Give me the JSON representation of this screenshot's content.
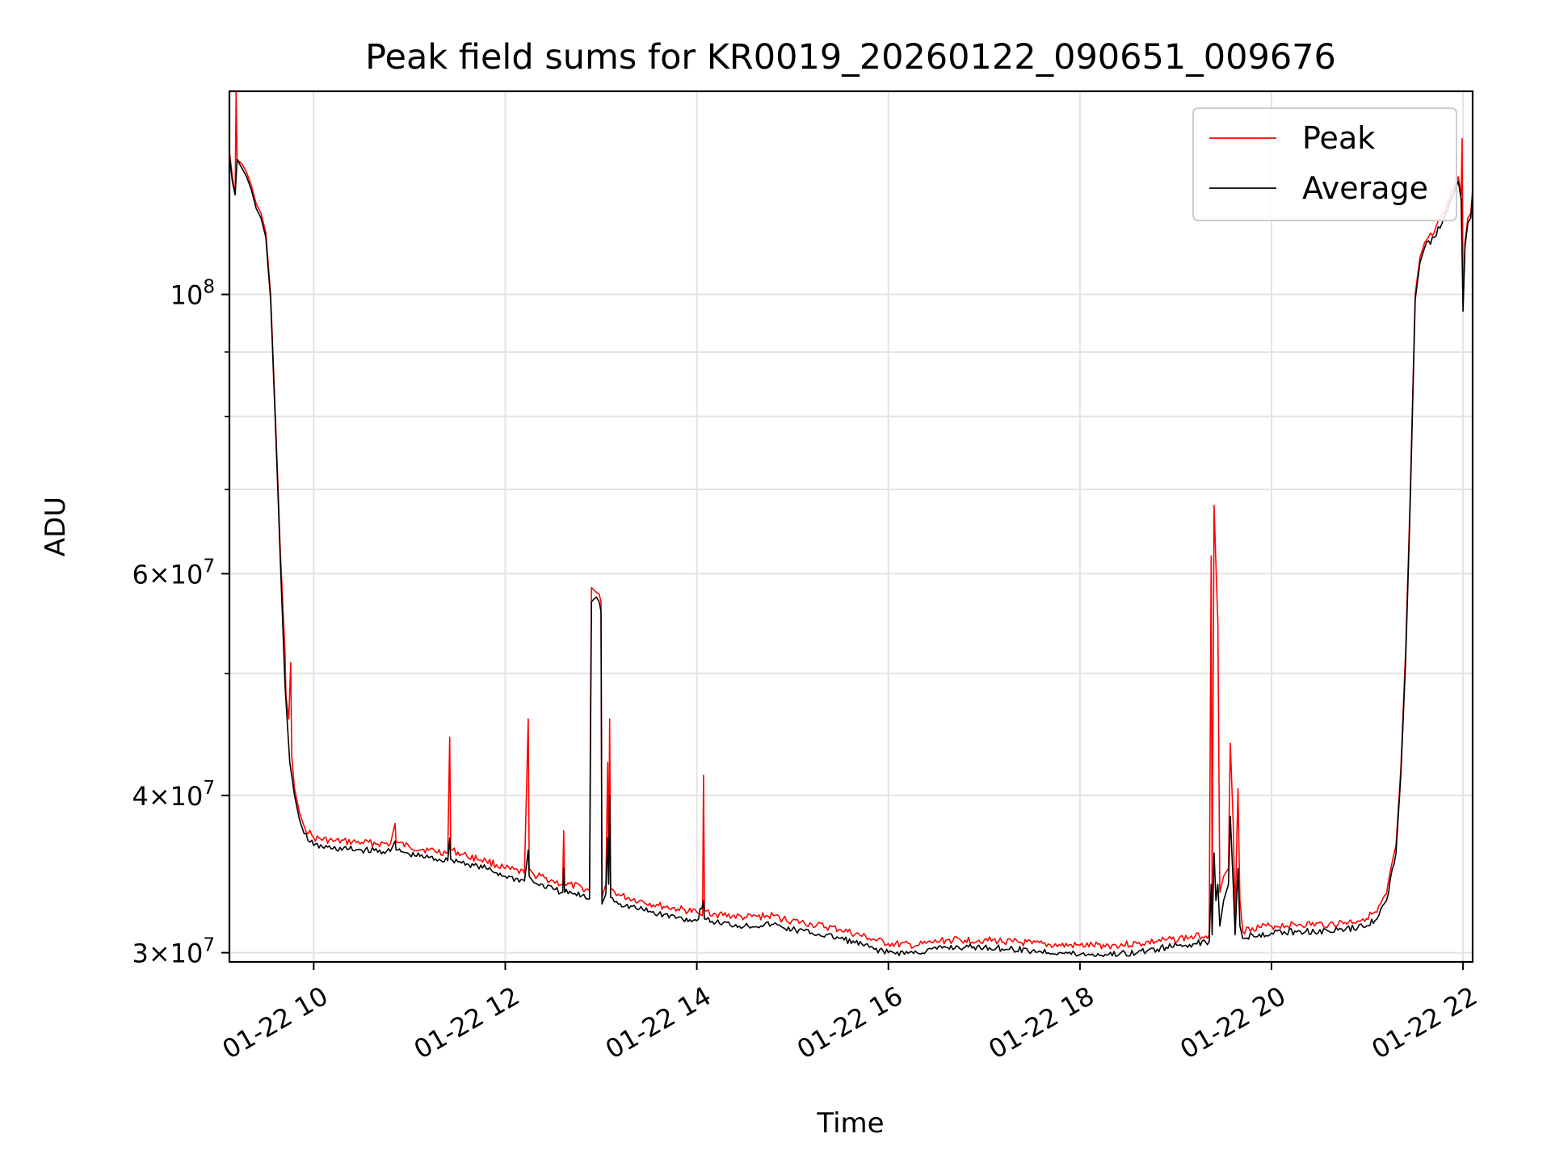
{
  "chart_data": {
    "type": "line",
    "title": "Peak field sums for KR0019_20260122_090651_009676",
    "xlabel": "Time",
    "ylabel": "ADU",
    "x_axis": {
      "unit": "hours",
      "range": [
        9.12,
        22.1
      ],
      "ticks": [
        {
          "value": 10,
          "label": "01-22 10"
        },
        {
          "value": 12,
          "label": "01-22 12"
        },
        {
          "value": 14,
          "label": "01-22 14"
        },
        {
          "value": 16,
          "label": "01-22 16"
        },
        {
          "value": 18,
          "label": "01-22 18"
        },
        {
          "value": 20,
          "label": "01-22 20"
        },
        {
          "value": 22,
          "label": "01-22 22"
        }
      ]
    },
    "y_axis": {
      "scale": "log",
      "range": [
        29500000,
        145000000
      ],
      "major_ticks": [
        {
          "value": 30000000,
          "mant": "3",
          "exp": "7"
        },
        {
          "value": 40000000,
          "mant": "4",
          "exp": "7"
        },
        {
          "value": 60000000,
          "mant": "6",
          "exp": "7"
        },
        {
          "value": 100000000,
          "mant": "",
          "exp": "8"
        }
      ],
      "minor_ticks": [
        50000000,
        70000000,
        80000000,
        90000000
      ]
    },
    "grid": true,
    "legend": {
      "position": "top-right"
    },
    "series": [
      {
        "name": "Peak",
        "color": "#ff0000",
        "points": [
          [
            9.12,
            130000000
          ],
          [
            9.15,
            124000000
          ],
          [
            9.18,
            120000000
          ],
          [
            9.19,
            145000000
          ],
          [
            9.2,
            128000000
          ],
          [
            9.25,
            127000000
          ],
          [
            9.3,
            125000000
          ],
          [
            9.35,
            122000000
          ],
          [
            9.4,
            118000000
          ],
          [
            9.45,
            116000000
          ],
          [
            9.5,
            112000000
          ],
          [
            9.55,
            100000000
          ],
          [
            9.6,
            80000000
          ],
          [
            9.65,
            63000000
          ],
          [
            9.7,
            52000000
          ],
          [
            9.71,
            48000000
          ],
          [
            9.74,
            46000000
          ],
          [
            9.76,
            51000000
          ],
          [
            9.77,
            43000000
          ],
          [
            9.8,
            40500000
          ],
          [
            9.85,
            38800000
          ],
          [
            9.9,
            37800000
          ],
          [
            10.0,
            37000000
          ],
          [
            10.2,
            36800000
          ],
          [
            10.5,
            36700000
          ],
          [
            10.8,
            36600000
          ],
          [
            10.85,
            38000000
          ],
          [
            10.86,
            36700000
          ],
          [
            11.0,
            36400000
          ],
          [
            11.2,
            36200000
          ],
          [
            11.4,
            36000000
          ],
          [
            11.42,
            44500000
          ],
          [
            11.43,
            36200000
          ],
          [
            11.6,
            35800000
          ],
          [
            11.8,
            35500000
          ],
          [
            12.0,
            35000000
          ],
          [
            12.2,
            34700000
          ],
          [
            12.24,
            46000000
          ],
          [
            12.25,
            35000000
          ],
          [
            12.3,
            34600000
          ],
          [
            12.5,
            34200000
          ],
          [
            12.6,
            34000000
          ],
          [
            12.61,
            37500000
          ],
          [
            12.62,
            34000000
          ],
          [
            12.8,
            33800000
          ],
          [
            12.88,
            33600000
          ],
          [
            12.89,
            47000000
          ],
          [
            12.9,
            58500000
          ],
          [
            12.95,
            58000000
          ],
          [
            12.98,
            57800000
          ],
          [
            13.0,
            57000000
          ],
          [
            13.01,
            33200000
          ],
          [
            13.05,
            34000000
          ],
          [
            13.07,
            42500000
          ],
          [
            13.08,
            34500000
          ],
          [
            13.09,
            46000000
          ],
          [
            13.1,
            33700000
          ],
          [
            13.2,
            33300000
          ],
          [
            13.4,
            33000000
          ],
          [
            13.6,
            32700000
          ],
          [
            13.8,
            32500000
          ],
          [
            14.0,
            32300000
          ],
          [
            14.06,
            32100000
          ],
          [
            14.07,
            41500000
          ],
          [
            14.08,
            32400000
          ],
          [
            14.2,
            32200000
          ],
          [
            14.5,
            32000000
          ],
          [
            14.8,
            32100000
          ],
          [
            14.9,
            31900000
          ],
          [
            15.2,
            31600000
          ],
          [
            15.5,
            31300000
          ],
          [
            15.8,
            30800000
          ],
          [
            16.0,
            30500000
          ],
          [
            16.3,
            30400000
          ],
          [
            16.6,
            30700000
          ],
          [
            16.8,
            30700000
          ],
          [
            17.0,
            30700000
          ],
          [
            17.3,
            30600000
          ],
          [
            17.5,
            30500000
          ],
          [
            17.8,
            30400000
          ],
          [
            18.0,
            30400000
          ],
          [
            18.3,
            30400000
          ],
          [
            18.6,
            30500000
          ],
          [
            18.9,
            30700000
          ],
          [
            19.2,
            30900000
          ],
          [
            19.35,
            31000000
          ],
          [
            19.37,
            62000000
          ],
          [
            19.38,
            33000000
          ],
          [
            19.4,
            68000000
          ],
          [
            19.42,
            61000000
          ],
          [
            19.44,
            55000000
          ],
          [
            19.46,
            33500000
          ],
          [
            19.5,
            34500000
          ],
          [
            19.55,
            35000000
          ],
          [
            19.57,
            44000000
          ],
          [
            19.6,
            38000000
          ],
          [
            19.62,
            32000000
          ],
          [
            19.65,
            40500000
          ],
          [
            19.67,
            33000000
          ],
          [
            19.7,
            31200000
          ],
          [
            19.8,
            31400000
          ],
          [
            20.0,
            31500000
          ],
          [
            20.3,
            31600000
          ],
          [
            20.6,
            31600000
          ],
          [
            20.9,
            31800000
          ],
          [
            21.1,
            32300000
          ],
          [
            21.2,
            33400000
          ],
          [
            21.3,
            36500000
          ],
          [
            21.35,
            42000000
          ],
          [
            21.4,
            52000000
          ],
          [
            21.45,
            70000000
          ],
          [
            21.5,
            100000000
          ],
          [
            21.55,
            107000000
          ],
          [
            21.6,
            110000000
          ],
          [
            21.7,
            112000000
          ],
          [
            21.8,
            116000000
          ],
          [
            21.9,
            121000000
          ],
          [
            21.95,
            124000000
          ],
          [
            21.98,
            120000000
          ],
          [
            21.99,
            133000000
          ],
          [
            22.0,
            98000000
          ],
          [
            22.02,
            110000000
          ],
          [
            22.05,
            115000000
          ],
          [
            22.08,
            116000000
          ],
          [
            22.1,
            121000000
          ]
        ]
      },
      {
        "name": "Average",
        "color": "#000000",
        "points": [
          [
            9.12,
            129000000
          ],
          [
            9.15,
            123000000
          ],
          [
            9.18,
            120000000
          ],
          [
            9.2,
            128000000
          ],
          [
            9.25,
            126000000
          ],
          [
            9.3,
            124000000
          ],
          [
            9.35,
            121000000
          ],
          [
            9.4,
            117000000
          ],
          [
            9.45,
            115000000
          ],
          [
            9.5,
            111000000
          ],
          [
            9.55,
            99000000
          ],
          [
            9.6,
            79000000
          ],
          [
            9.65,
            62000000
          ],
          [
            9.7,
            49000000
          ],
          [
            9.75,
            42500000
          ],
          [
            9.8,
            40000000
          ],
          [
            9.85,
            38300000
          ],
          [
            9.9,
            37300000
          ],
          [
            10.0,
            36500000
          ],
          [
            10.2,
            36300000
          ],
          [
            10.5,
            36200000
          ],
          [
            10.8,
            36100000
          ],
          [
            10.85,
            36800000
          ],
          [
            10.86,
            36200000
          ],
          [
            11.0,
            35900000
          ],
          [
            11.2,
            35700000
          ],
          [
            11.4,
            35500000
          ],
          [
            11.42,
            37000000
          ],
          [
            11.43,
            35600000
          ],
          [
            11.6,
            35300000
          ],
          [
            11.8,
            35000000
          ],
          [
            12.0,
            34500000
          ],
          [
            12.2,
            34200000
          ],
          [
            12.24,
            36200000
          ],
          [
            12.25,
            34500000
          ],
          [
            12.3,
            34100000
          ],
          [
            12.5,
            33700000
          ],
          [
            12.6,
            33500000
          ],
          [
            12.61,
            35000000
          ],
          [
            12.62,
            33500000
          ],
          [
            12.8,
            33300000
          ],
          [
            12.88,
            33100000
          ],
          [
            12.89,
            44000000
          ],
          [
            12.9,
            57000000
          ],
          [
            12.95,
            57500000
          ],
          [
            12.98,
            57000000
          ],
          [
            13.0,
            56000000
          ],
          [
            13.01,
            32800000
          ],
          [
            13.05,
            33400000
          ],
          [
            13.07,
            37000000
          ],
          [
            13.08,
            34000000
          ],
          [
            13.09,
            40000000
          ],
          [
            13.1,
            33200000
          ],
          [
            13.2,
            32800000
          ],
          [
            13.4,
            32500000
          ],
          [
            13.6,
            32200000
          ],
          [
            13.8,
            32000000
          ],
          [
            14.0,
            31800000
          ],
          [
            14.07,
            33000000
          ],
          [
            14.08,
            31900000
          ],
          [
            14.2,
            31700000
          ],
          [
            14.5,
            31500000
          ],
          [
            14.8,
            31600000
          ],
          [
            14.9,
            31400000
          ],
          [
            15.2,
            31100000
          ],
          [
            15.5,
            30800000
          ],
          [
            15.8,
            30300000
          ],
          [
            16.0,
            30000000
          ],
          [
            16.3,
            30000000
          ],
          [
            16.6,
            30300000
          ],
          [
            16.8,
            30300000
          ],
          [
            17.0,
            30300000
          ],
          [
            17.3,
            30200000
          ],
          [
            17.5,
            30100000
          ],
          [
            17.8,
            30000000
          ],
          [
            18.0,
            29900000
          ],
          [
            18.3,
            29900000
          ],
          [
            18.6,
            30000000
          ],
          [
            18.9,
            30300000
          ],
          [
            19.2,
            30500000
          ],
          [
            19.35,
            30600000
          ],
          [
            19.37,
            34000000
          ],
          [
            19.38,
            31000000
          ],
          [
            19.4,
            36000000
          ],
          [
            19.42,
            33000000
          ],
          [
            19.44,
            34000000
          ],
          [
            19.46,
            31500000
          ],
          [
            19.5,
            33000000
          ],
          [
            19.55,
            34000000
          ],
          [
            19.57,
            38500000
          ],
          [
            19.6,
            34000000
          ],
          [
            19.62,
            31000000
          ],
          [
            19.65,
            35000000
          ],
          [
            19.67,
            31500000
          ],
          [
            19.7,
            30800000
          ],
          [
            19.8,
            31000000
          ],
          [
            20.0,
            31100000
          ],
          [
            20.3,
            31200000
          ],
          [
            20.6,
            31200000
          ],
          [
            20.9,
            31400000
          ],
          [
            21.1,
            31900000
          ],
          [
            21.2,
            33000000
          ],
          [
            21.3,
            36000000
          ],
          [
            21.35,
            41500000
          ],
          [
            21.4,
            51000000
          ],
          [
            21.45,
            69000000
          ],
          [
            21.5,
            99000000
          ],
          [
            21.55,
            106000000
          ],
          [
            21.6,
            109000000
          ],
          [
            21.7,
            111000000
          ],
          [
            21.8,
            115000000
          ],
          [
            21.9,
            120000000
          ],
          [
            21.95,
            123000000
          ],
          [
            21.98,
            119000000
          ],
          [
            22.0,
            97000000
          ],
          [
            22.02,
            109000000
          ],
          [
            22.05,
            114000000
          ],
          [
            22.08,
            115000000
          ],
          [
            22.1,
            120000000
          ]
        ]
      }
    ]
  }
}
